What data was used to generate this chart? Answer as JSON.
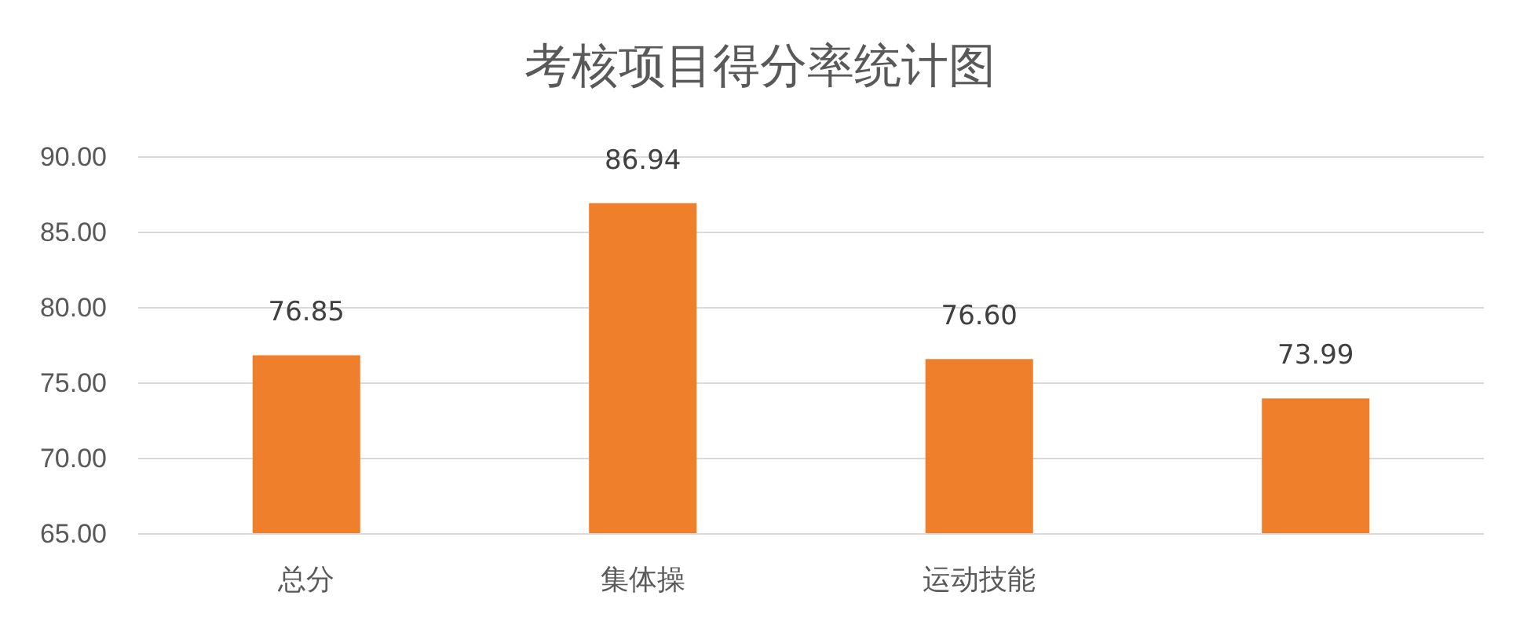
{
  "chart_data": {
    "type": "bar",
    "title": "考核项目得分率统计图",
    "categories": [
      "总分",
      "集体操",
      "运动技能",
      null
    ],
    "values": [
      76.85,
      86.94,
      76.6,
      73.99
    ],
    "value_labels": [
      "76.85",
      "86.94",
      "76.60",
      "73.99"
    ],
    "color": "#f07f2b",
    "ylim": [
      65,
      90
    ],
    "yticks": [
      {
        "value": 65,
        "label": "65.00"
      },
      {
        "value": 70,
        "label": "70.00"
      },
      {
        "value": 75,
        "label": "75.00"
      },
      {
        "value": 80,
        "label": "80.00"
      },
      {
        "value": 85,
        "label": "85.00"
      },
      {
        "value": 90,
        "label": "90.00"
      }
    ],
    "grid": "y"
  }
}
